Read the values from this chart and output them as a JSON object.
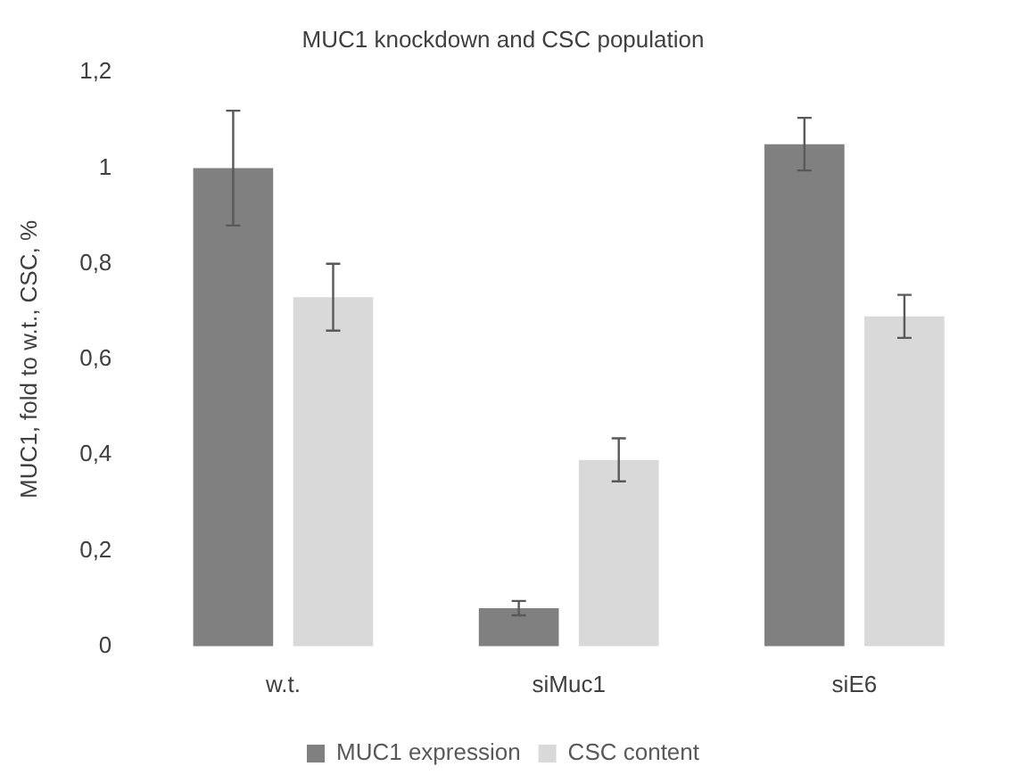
{
  "chart_data": {
    "type": "bar",
    "title": "MUC1 knockdown and CSC population",
    "ylabel": "MUC1, fold to w.t., CSC, %",
    "categories": [
      "w.t.",
      "siMuc1",
      "siE6"
    ],
    "series": [
      {
        "name": "MUC1 expression",
        "color": "#808080",
        "values": [
          1.0,
          0.08,
          1.05
        ],
        "errors": [
          0.12,
          0.015,
          0.055
        ]
      },
      {
        "name": "CSC content",
        "color": "#d9d9d9",
        "values": [
          0.73,
          0.39,
          0.69
        ],
        "errors": [
          0.07,
          0.045,
          0.045
        ]
      }
    ],
    "ylim": [
      0,
      1.2
    ],
    "yticks": [
      0,
      {
        "value": 0.2,
        "label": "0,2"
      },
      {
        "value": 0.4,
        "label": "0,4"
      },
      {
        "value": 0.6,
        "label": "0,6"
      },
      {
        "value": 0.8,
        "label": "0,8"
      },
      1,
      {
        "value": 1.2,
        "label": "1,2"
      }
    ],
    "grid": false,
    "legend": "bottom"
  }
}
